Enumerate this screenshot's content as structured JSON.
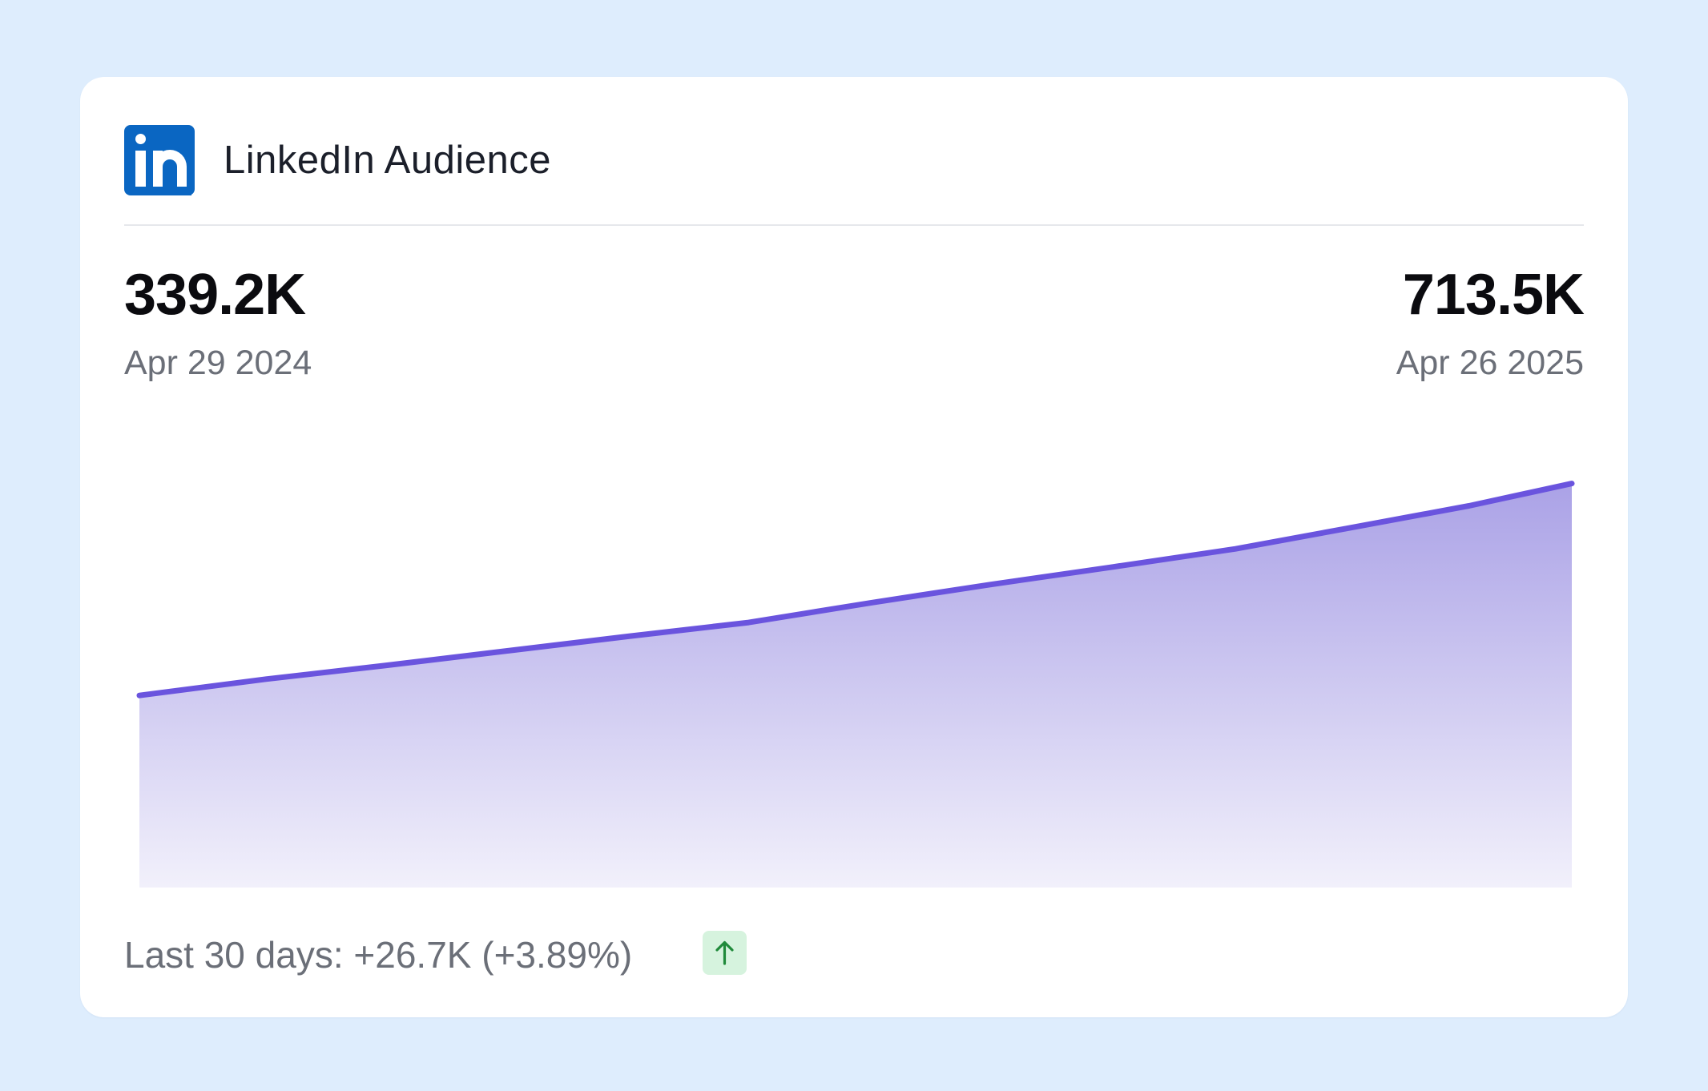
{
  "card": {
    "title": "LinkedIn Audience",
    "brand_color": "#0a66c2",
    "logo_icon": "linkedin-icon"
  },
  "stats": {
    "start": {
      "value": "339.2K",
      "date": "Apr 29 2024"
    },
    "end": {
      "value": "713.5K",
      "date": "Apr 26 2025"
    }
  },
  "footer": {
    "last_30_days": "Last 30 days: +26.7K (+3.89%)",
    "trend_icon": "arrow-up-icon",
    "trend_color": "#1f8a3a"
  },
  "chart_data": {
    "type": "area",
    "x": [
      "2024-04-29",
      "2024-05-31",
      "2024-06-30",
      "2024-07-31",
      "2024-08-31",
      "2024-09-30",
      "2024-10-31",
      "2024-11-30",
      "2024-12-31",
      "2025-01-31",
      "2025-02-28",
      "2025-03-31",
      "2025-04-26"
    ],
    "series": [
      {
        "values": [
          339.2,
          368,
          392,
          418,
          444,
          468,
          503,
          535,
          566,
          598,
          634,
          674,
          713.5
        ]
      }
    ],
    "ylim": [
      0,
      1000
    ],
    "grid": false,
    "line_color": "#6a54de",
    "fill_color": "#9f95e3"
  }
}
